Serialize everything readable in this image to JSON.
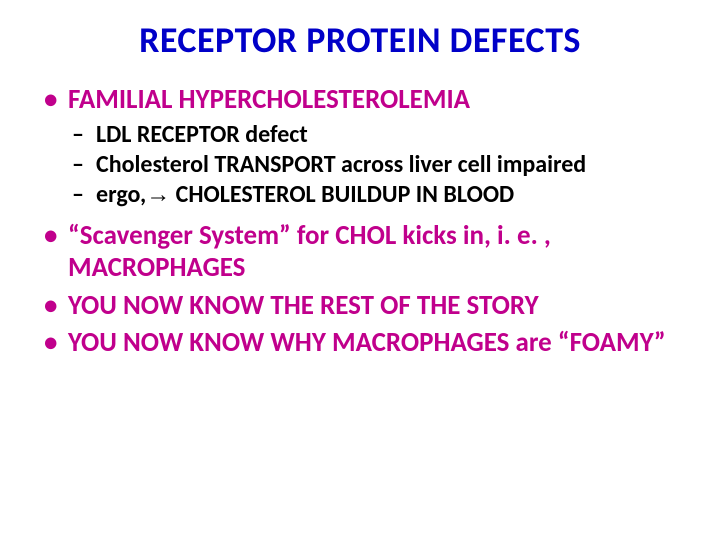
{
  "colors": {
    "title": "#0000c8",
    "magenta": "#c0008c",
    "black": "#000000",
    "background": "#ffffff"
  },
  "title": "RECEPTOR PROTEIN DEFECTS",
  "bullets": [
    {
      "text": "FAMILIAL HYPERCHOLESTEROLEMIA",
      "color": "magenta",
      "sub": [
        {
          "text": "LDL RECEPTOR defect",
          "color": "black"
        },
        {
          "text": "Cholesterol TRANSPORT across liver cell impaired",
          "color": "black"
        },
        {
          "prefix": "ergo,",
          "arrow": "→",
          "rest": " CHOLESTEROL BUILDUP IN BLOOD",
          "color": "black"
        }
      ]
    },
    {
      "text": "“Scavenger System” for CHOL kicks in, i. e. , MACROPHAGES",
      "color": "magenta"
    },
    {
      "text": "YOU NOW KNOW THE REST OF THE STORY",
      "color": "magenta"
    },
    {
      "text": "YOU NOW KNOW WHY MACROPHAGES are “FOAMY”",
      "color": "magenta"
    }
  ]
}
